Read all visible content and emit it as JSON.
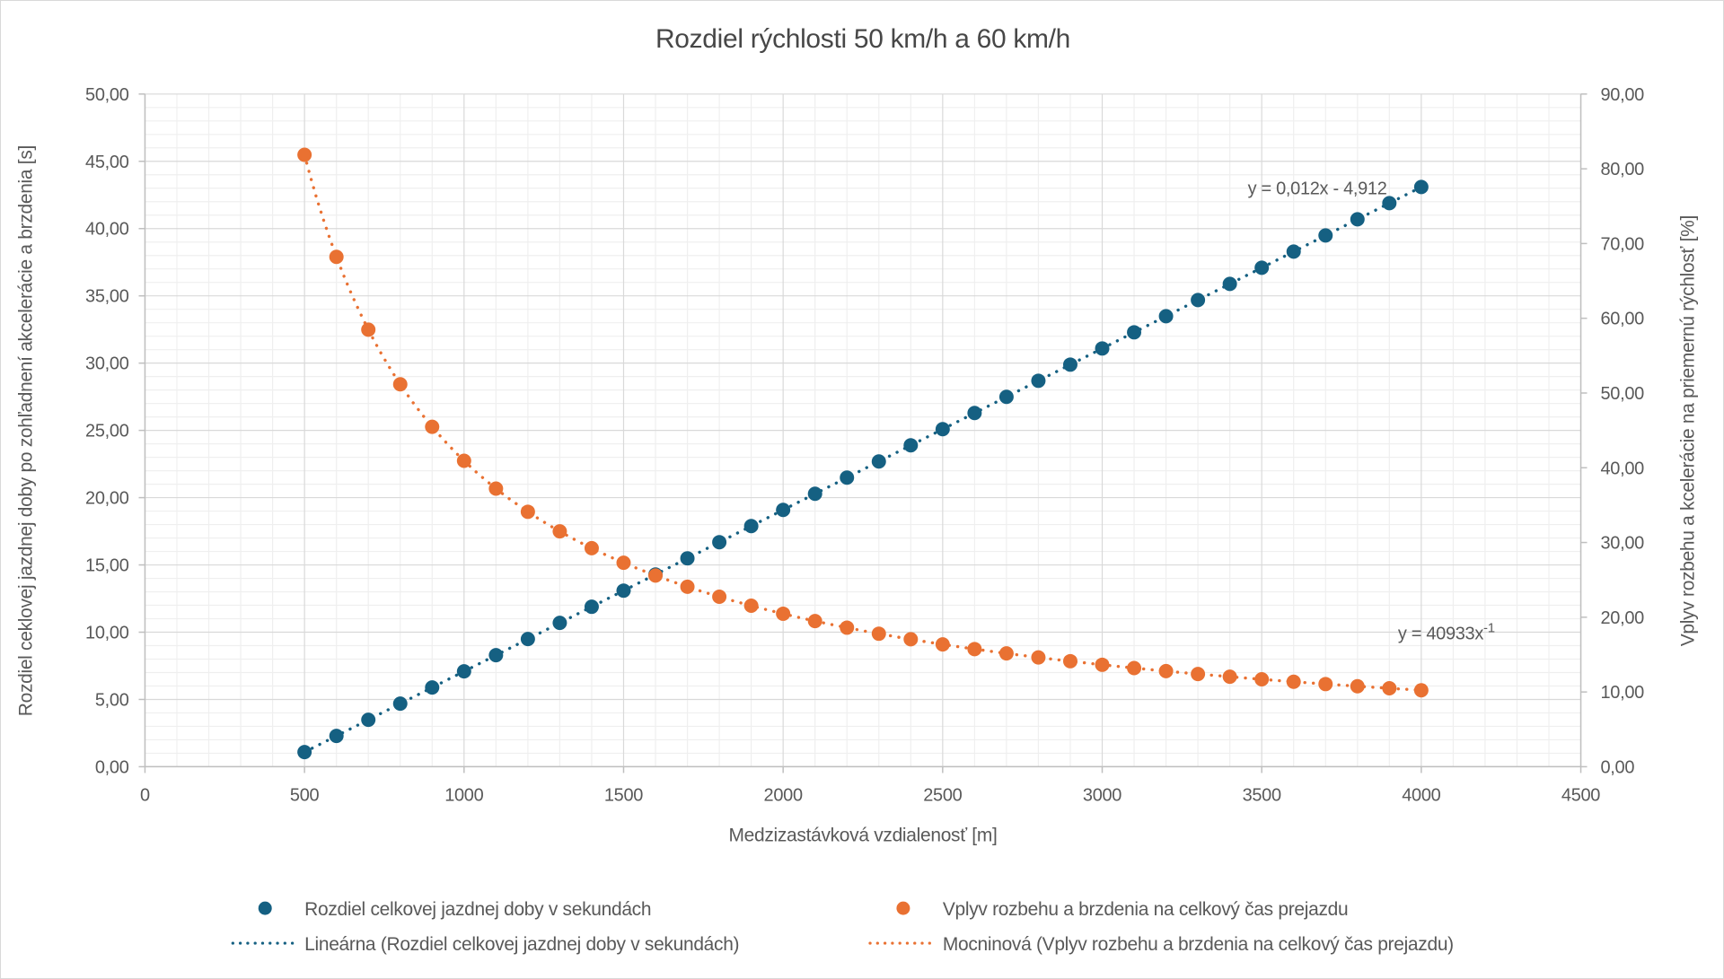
{
  "title": "Rozdiel rýchlosti 50 km/h a 60 km/h",
  "colors": {
    "series1": "#156082",
    "series2": "#E97132",
    "grid_major": "#D9D9D9",
    "grid_minor": "#EFEFEF",
    "axis_line": "#BFBFBF",
    "text": "#595959"
  },
  "chart_data": {
    "type": "scatter",
    "title": "Rozdiel rýchlosti 50 km/h a 60 km/h",
    "x_axis": {
      "label": "Medzizastávková vzdialenosť [m]",
      "min": 0,
      "max": 4500,
      "major_unit": 500,
      "minor_unit": 100,
      "tick_labels": [
        "0",
        "500",
        "1000",
        "1500",
        "2000",
        "2500",
        "3000",
        "3500",
        "4000",
        "4500"
      ]
    },
    "y_left_axis": {
      "label": "Rozdiel ceklovej jazdnej doby po zohľadnení akcelerácie a brzdenia [s]",
      "min": 0,
      "max": 50,
      "major_unit": 5,
      "minor_unit": 1,
      "tick_labels": [
        "0,00",
        "5,00",
        "10,00",
        "15,00",
        "20,00",
        "25,00",
        "30,00",
        "35,00",
        "40,00",
        "45,00",
        "50,00"
      ]
    },
    "y_right_axis": {
      "label": "Vplyv rozbehu a kcelerácie na priemernú rýchlosť [%]",
      "min": 0,
      "max": 90,
      "major_unit": 10,
      "tick_labels": [
        "0,00",
        "10,00",
        "20,00",
        "30,00",
        "40,00",
        "50,00",
        "60,00",
        "70,00",
        "80,00",
        "90,00"
      ]
    },
    "grid": {
      "major": true,
      "minor": true
    },
    "x": [
      500,
      600,
      700,
      800,
      900,
      1000,
      1100,
      1200,
      1300,
      1400,
      1500,
      1600,
      1700,
      1800,
      1900,
      2000,
      2100,
      2200,
      2300,
      2400,
      2500,
      2600,
      2700,
      2800,
      2900,
      3000,
      3100,
      3200,
      3300,
      3400,
      3500,
      3600,
      3700,
      3800,
      3900,
      4000
    ],
    "series": [
      {
        "name": "Rozdiel celkovej jazdnej doby v sekundách",
        "axis": "left",
        "color": "#156082",
        "values": [
          1.09,
          2.29,
          3.49,
          4.69,
          5.89,
          7.09,
          8.29,
          9.49,
          10.69,
          11.89,
          13.09,
          14.29,
          15.49,
          16.69,
          17.89,
          19.09,
          20.29,
          21.49,
          22.69,
          23.89,
          25.09,
          26.29,
          27.49,
          28.69,
          29.89,
          31.09,
          32.29,
          33.49,
          34.69,
          35.89,
          37.09,
          38.29,
          39.49,
          40.69,
          41.89,
          43.09
        ]
      },
      {
        "name": "Vplyv rozbehu a brzdenia na celkový čas prejazdu",
        "axis": "right",
        "color": "#E97132",
        "values": [
          81.87,
          68.22,
          58.48,
          51.17,
          45.48,
          40.93,
          37.21,
          34.11,
          31.49,
          29.24,
          27.29,
          25.58,
          24.08,
          22.74,
          21.54,
          20.47,
          19.49,
          18.61,
          17.8,
          17.06,
          16.37,
          15.74,
          15.16,
          14.62,
          14.12,
          13.64,
          13.2,
          12.79,
          12.4,
          12.04,
          11.7,
          11.37,
          11.06,
          10.77,
          10.5,
          10.23
        ]
      }
    ],
    "trendlines": [
      {
        "series": 0,
        "type": "linear",
        "name": "Lineárna (Rozdiel celkovej jazdnej doby v sekundách)",
        "equation": "y = 0,012x - 4,912",
        "slope": 0.012,
        "intercept": -4.912,
        "color": "#156082"
      },
      {
        "series": 1,
        "type": "power",
        "name": "Mocninová (Vplyv rozbehu a brzdenia na celkový čas prejazdu)",
        "equation": "y = 40933x⁻¹",
        "coefficient": 40933,
        "exponent": -1,
        "color": "#E97132"
      }
    ]
  },
  "annotations": {
    "linear_equation": "y = 0,012x - 4,912",
    "power_equation_base": "y = 40933x",
    "power_equation_exponent": "-1"
  },
  "legend": {
    "items": [
      {
        "label": "Rozdiel celkovej jazdnej doby v sekundách",
        "marker": "dot",
        "color": "#156082"
      },
      {
        "label": "Vplyv rozbehu a brzdenia na celkový čas prejazdu",
        "marker": "dot",
        "color": "#E97132"
      },
      {
        "label": "Lineárna (Rozdiel celkovej jazdnej doby v sekundách)",
        "marker": "dotted-line",
        "color": "#156082"
      },
      {
        "label": "Mocninová (Vplyv rozbehu a brzdenia na celkový čas prejazdu)",
        "marker": "dotted-line",
        "color": "#E97132"
      }
    ]
  }
}
